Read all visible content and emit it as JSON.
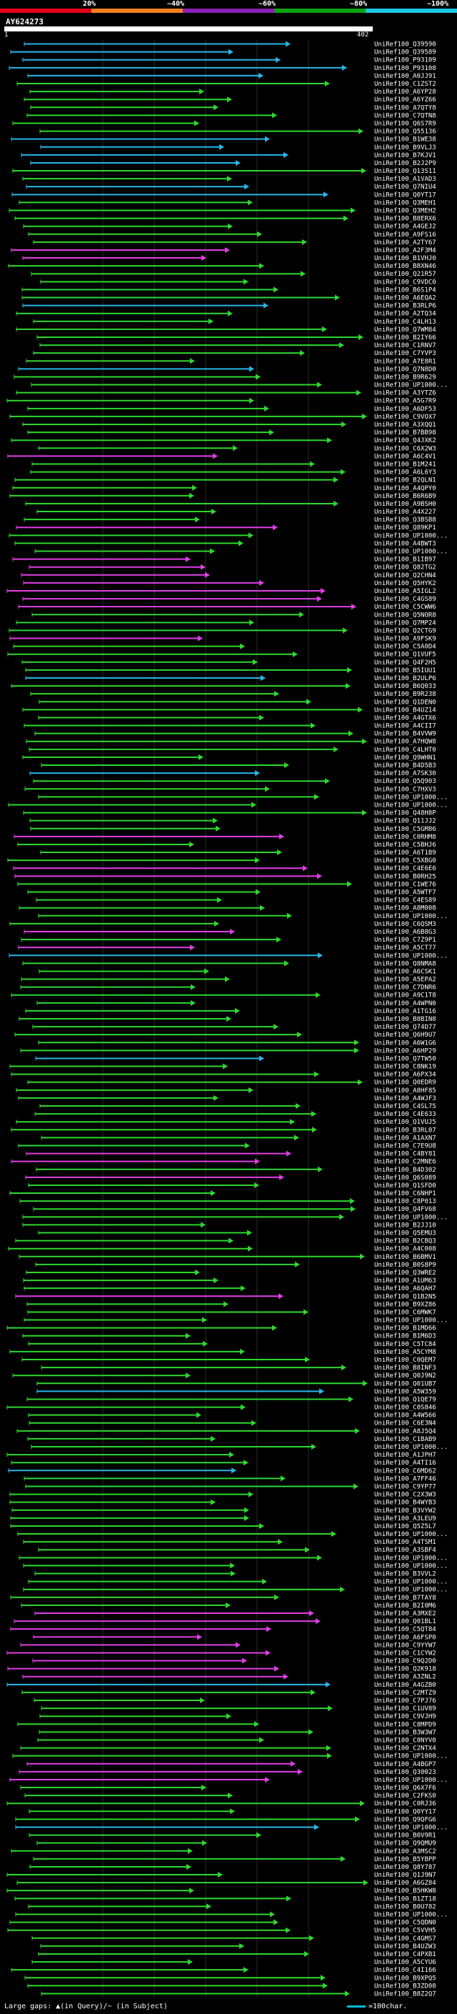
{
  "legend": {
    "ticks": [
      "20%",
      "~40%",
      "~60%",
      "~80%",
      "~100%"
    ],
    "colors": [
      "#e8001c",
      "#f5821f",
      "#8b1fb5",
      "#0aa312",
      "#1fc8e8"
    ]
  },
  "query": {
    "name": "AY624273",
    "start": "1",
    "end": "402"
  },
  "hit_colors": {
    "green": "#2fd82f",
    "blue": "#29b6e8",
    "magenta": "#e13ee6"
  },
  "hits": [
    "UniRef100_Q39590",
    "UniRef100_Q39589",
    "UniRef100_P93109",
    "UniRef100_P93108",
    "UniRef100_A0JJ91",
    "UniRef100_C1ZST2",
    "UniRef100_A6YP28",
    "UniRef100_A6YZ66",
    "UniRef100_A7QTY8",
    "UniRef100_C7QTN8",
    "UniRef100_Q6S7R9",
    "UniRef100_Q55136",
    "UniRef100_B1WE38",
    "UniRef100_B9VLJ3",
    "UniRef100_B7KJV1",
    "UniRef100_B2J2P9",
    "UniRef100_Q13S11",
    "UniRef100_A1VAD3",
    "UniRef100_Q7NIU4",
    "UniRef100_Q0YT17",
    "UniRef100_Q3MEH1",
    "UniRef100_Q3MEH2",
    "UniRef100_B8ERX6",
    "UniRef100_A4GEJ2",
    "UniRef100_A9FS16",
    "UniRef100_A2TY67",
    "UniRef100_A2F3M4",
    "UniRef100_B1VHJ0",
    "UniRef100_B8XN46",
    "UniRef100_Q21R57",
    "UniRef100_C9VDC0",
    "UniRef100_B6S1P4",
    "UniRef100_A6EQA2",
    "UniRef100_B3RLP6",
    "UniRef100_A2TQ34",
    "UniRef100_C4LH13",
    "UniRef100_Q7WM84",
    "UniRef100_B2IY66",
    "UniRef100_C1RNV7",
    "UniRef100_C7YVP3",
    "UniRef100_A7E8R1",
    "UniRef100_Q7N8D0",
    "UniRef100_B9R629",
    "UniRef100_UP1000...",
    "UniRef100_A3YTZ6",
    "UniRef100_A5G7R9",
    "UniRef100_A6DF53",
    "UniRef100_C9VOX7",
    "UniRef100_A3XQQ1",
    "UniRef100_B7BB98",
    "UniRef100_Q4JXK2",
    "UniRef100_C6X2W3",
    "UniRef100_A6C4V1",
    "UniRef100_B1M241",
    "UniRef100_A6L6Y3",
    "UniRef100_B2QLN1",
    "UniRef100_A4QPY0",
    "UniRef100_B6R6B9",
    "UniRef100_A9BSH0",
    "UniRef100_A4X227",
    "UniRef100_Q3BSB8",
    "UniRef100_Q89KP1",
    "UniRef100_UP1000...",
    "UniRef100_A4BWT3",
    "UniRef100_UP1000...",
    "UniRef100_B1IB97",
    "UniRef100_Q82TG2",
    "UniRef100_Q2CHN4",
    "UniRef100_Q5HYK2",
    "UniRef100_A5IGL2",
    "UniRef100_C4GS89",
    "UniRef100_C5CWW6",
    "UniRef100_Q5NOR8",
    "UniRef100_Q7MP24",
    "UniRef100_Q2CTG9",
    "UniRef100_A9FSK9",
    "UniRef100_C5A0D4",
    "UniRef100_Q1VUF5",
    "UniRef100_Q4F2H5",
    "UniRef100_B5IUU1",
    "UniRef100_B2ULP6",
    "UniRef100_B6Q033",
    "UniRef100_B9R238",
    "UniRef100_Q1DEN0",
    "UniRef100_B4UZ14",
    "UniRef100_A4GTX6",
    "UniRef100_A4CII7",
    "UniRef100_B4VVW9",
    "UniRef100_A7HQW8",
    "UniRef100_C4LHT0",
    "UniRef100_Q9WHN1",
    "UniRef100_B4D5B3",
    "UniRef100_A7SK30",
    "UniRef100_Q5Q903",
    "UniRef100_C7HXV3",
    "UniRef100_UP1000...",
    "UniRef100_UP1000...",
    "UniRef100_Q48H8P",
    "UniRef100_Q11JJ2",
    "UniRef100_C5GM86",
    "UniRef100_C0RHM8",
    "UniRef100_C5BHJ6",
    "UniRef100_A6T1B9",
    "UniRef100_C5XBG0",
    "UniRef100_C4E6E6",
    "UniRef100_B0RH25",
    "UniRef100_C1WE76",
    "UniRef100_A5WTF7",
    "UniRef100_C4ES89",
    "UniRef100_A8M008",
    "UniRef100_UP1000...",
    "UniRef100_C6QSM3",
    "UniRef100_A6B8G3",
    "UniRef100_C7Z9P1",
    "UniRef100_A5CT77",
    "UniRef100_UP1000...",
    "UniRef100_Q8NMA8",
    "UniRef100_A6CSK1",
    "UniRef100_A5EPA2",
    "UniRef100_C7DNR6",
    "UniRef100_A9C1T8",
    "UniRef100_A4WPN0",
    "UniRef100_A1TG16",
    "UniRef100_B8BIN8",
    "UniRef100_Q74D77",
    "UniRef100_Q6H9U7",
    "UniRef100_A6W1G6",
    "UniRef100_A6HP29",
    "UniRef100_Q7TW50",
    "UniRef100_C8NK19",
    "UniRef100_A6PX34",
    "UniRef100_Q0EDR9",
    "UniRef100_A8HF85",
    "UniRef100_A4WJF3",
    "UniRef100_C4SL75",
    "UniRef100_C4E633",
    "UniRef100_Q1VUJ5",
    "UniRef100_B3RL07",
    "UniRef100_A1AXN7",
    "UniRef100_C7E9U8",
    "UniRef100_C4BY81",
    "UniRef100_C2MNE6",
    "UniRef100_B4D302",
    "UniRef100_Q6S089",
    "UniRef100_Q1SFD0",
    "UniRef100_C6NHP1",
    "UniRef100_C8P013",
    "UniRef100_Q4FV68",
    "UniRef100_UP1000...",
    "UniRef100_B2JJ10",
    "UniRef100_Q5EMU3",
    "UniRef100_B2CBQ3",
    "UniRef100_A4C008",
    "UniRef100_B6BMV1",
    "UniRef100_B0S8P9",
    "UniRef100_Q3WRE2",
    "UniRef100_A1UM63",
    "UniRef100_A6QAH7",
    "UniRef100_Q1B2N5",
    "UniRef100_B9XZ86",
    "UniRef100_C6MWK7",
    "UniRef100_UP1000...",
    "UniRef100_B1MD66",
    "UniRef100_B1M6D3",
    "UniRef100_C5TC84",
    "UniRef100_A5CYM8",
    "UniRef100_C0QEM7",
    "UniRef100_B8INF3",
    "UniRef100_Q0J9N2",
    "UniRef100_Q01UB7",
    "UniRef100_A5W359",
    "UniRef100_Q1QE79",
    "UniRef100_C0S846",
    "UniRef100_A4W566",
    "UniRef100_C6E3N4",
    "UniRef100_A8J5Q4",
    "UniRef100_C1BAB9",
    "UniRef100_UP1000...",
    "UniRef100_A1JPH7",
    "UniRef100_A4TI16",
    "UniRef100_C6MD62",
    "UniRef100_A7FF46",
    "UniRef100_C9YP77",
    "UniRef100_C2X3W3",
    "UniRef100_B4WYB3",
    "UniRef100_B3VYW2",
    "UniRef100_A3LEU9",
    "UniRef100_Q5Z5L7",
    "UniRef100_UP1000...",
    "UniRef100_A4TSM1",
    "UniRef100_A3SBF4",
    "UniRef100_UP1000...",
    "UniRef100_UP1000...",
    "UniRef100_B3VVL2",
    "UniRef100_UP1000...",
    "UniRef100_UP1000...",
    "UniRef100_B7TAY8",
    "UniRef100_B2I0M6",
    "UniRef100_A3MXE2",
    "UniRef100_Q01BL1",
    "UniRef100_C5QT84",
    "UniRef100_A6FSP0",
    "UniRef100_C9YYW7",
    "UniRef100_C1CYW2",
    "UniRef100_C9Q2D0",
    "UniRef100_Q2K918",
    "UniRef100_A3ZNL2",
    "UniRef100_A4GZB0",
    "UniRef100_C2MTZ9",
    "UniRef100_C7PJ76",
    "UniRef100_C1UV89",
    "UniRef100_C9VJH9",
    "UniRef100_C8MPD9",
    "UniRef100_B3W3W7",
    "UniRef100_C8NYV0",
    "UniRef100_C2NTX4",
    "UniRef100_UP1000...",
    "UniRef100_A4BGP7",
    "UniRef100_Q30023",
    "UniRef100_UP1000...",
    "UniRef100_Q6X7F6",
    "UniRef100_C2FKS0",
    "UniRef100_C0RJ36",
    "UniRef100_Q0YY17",
    "UniRef100_Q9QFG6",
    "UniRef100_UP1000...",
    "UniRef100_B0V9R1",
    "UniRef100_Q9QMU9",
    "UniRef100_A3MSC2",
    "UniRef100_B5YBPP",
    "UniRef100_Q8Y787",
    "UniRef100_Q1J9N7",
    "UniRef100_A6GZ84",
    "UniRef100_B5HKW8",
    "UniRef100_B1ZT18",
    "UniRef100_B0U782",
    "UniRef100_UP1000...",
    "UniRef100_C5QDN0",
    "UniRef100_C5VVH5",
    "UniRef100_C4GMS7",
    "UniRef100_B4UZW3",
    "UniRef100_C4PXB1",
    "UniRef100_A5CYU6",
    "UniRef100_C4I166",
    "UniRef100_B9XPQ5",
    "UniRef100_B3ZD08",
    "UniRef100_B8Z2Q7"
  ],
  "footer": {
    "left": "Large gaps: ▲(in Query)/~ (in Subject)",
    "right": "=100char."
  }
}
